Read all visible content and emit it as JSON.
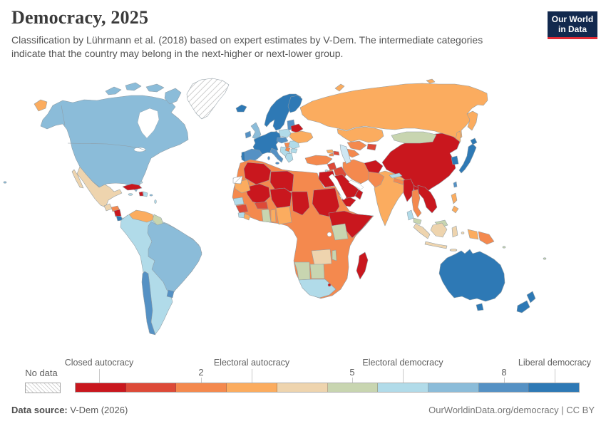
{
  "header": {
    "title": "Democracy, 2025",
    "subtitle": "Classification by Lührmann et al. (2018) based on expert estimates by V-Dem. The intermediate categories indicate that the country may belong in the next-higher or next-lower group."
  },
  "logo": {
    "line1": "Our World",
    "line2": "in Data"
  },
  "legend": {
    "no_data_label": "No data",
    "category_labels": [
      "Closed autocracy",
      "Electoral autocracy",
      "Electoral democracy",
      "Liberal democracy"
    ],
    "numeric_ticks": [
      "2",
      "5",
      "8"
    ],
    "palette": [
      "#c9171e",
      "#dd4a38",
      "#f4894e",
      "#fbac5f",
      "#eed4ae",
      "#c8d5b0",
      "#b1dbe9",
      "#8bbcd9",
      "#5591c4",
      "#2e79b5"
    ]
  },
  "footer": {
    "source_label": "Data source:",
    "source_value": "V-Dem (2026)",
    "credit": "OurWorldinData.org/democracy | CC BY"
  },
  "chart_data": {
    "type": "choropleth",
    "title": "Democracy, 2025",
    "scale": {
      "min": 0,
      "max": 9,
      "ticks": [
        2,
        5,
        8
      ],
      "category_tick_positions": [
        0,
        3,
        6,
        9
      ]
    },
    "categories": [
      "Closed autocracy",
      "Electoral autocracy",
      "Electoral democracy",
      "Liberal democracy"
    ],
    "no_data": [
      "Greenland",
      "Western Sahara"
    ],
    "countries": {
      "canada": 7,
      "united_states": 7,
      "mexico": 4,
      "guatemala": 4,
      "honduras": 2,
      "nicaragua": 0,
      "costa_rica": 9,
      "panama": 6,
      "cuba": 0,
      "haiti": 0,
      "dominican_republic": 6,
      "jamaica": 6,
      "bahamas": 6,
      "puerto_rico": 7,
      "lesser_antilles": 6,
      "colombia": 6,
      "venezuela": 3,
      "guyana": 5,
      "suriname": 5,
      "ecuador": 6,
      "peru": 6,
      "brazil": 7,
      "bolivia": 6,
      "paraguay": 6,
      "chile": 8,
      "argentina": 6,
      "uruguay": 8,
      "iceland": 9,
      "norway": 9,
      "sweden": 9,
      "finland": 9,
      "denmark": 9,
      "united_kingdom": 7,
      "ireland": 8,
      "france": 9,
      "germany": 9,
      "spain": 8,
      "portugal": 9,
      "italy": 8,
      "poland": 6,
      "czechia": 8,
      "austria": 8,
      "hungary": 2,
      "romania": 6,
      "bulgaria": 6,
      "balkans": 6,
      "serbia": 2,
      "greece": 6,
      "baltics": 8,
      "belarus": 0,
      "ukraine": 3,
      "moldova": 6,
      "russia": 3,
      "kazakhstan": 3,
      "uzbekistan": 2,
      "turkmenistan": 2,
      "kyrgyzstan_tajikistan": 1,
      "georgia": 3,
      "azerbaijan": 1,
      "armenia": 2,
      "turkey": 2,
      "syria": 1,
      "iraq": 1,
      "iran": 2,
      "saudi_arabia": 0,
      "yemen": 0,
      "oman": 0,
      "jordan": 2,
      "israel": 6,
      "egypt": 0,
      "morocco": 2,
      "algeria": 0,
      "libya": 0,
      "tunisia": 2,
      "mauritania": 3,
      "mali": 0,
      "niger": 0,
      "chad": 0,
      "sudan": 0,
      "ethiopia_horn": 0,
      "senegal": 6,
      "guinea": 1,
      "sierra_leone": 6,
      "liberia": 3,
      "ghana": 5,
      "burkina_faso": 1,
      "togo_benin": 3,
      "nigeria": 3,
      "central_africa": 2,
      "kenya": 5,
      "zambia": 4,
      "malawi": 5,
      "namibia": 5,
      "botswana": 5,
      "south_africa": 6,
      "eswatini": 0,
      "madagascar": 0,
      "afghanistan": 0,
      "pakistan": 2,
      "india": 3,
      "nepal": 2,
      "bangladesh": 0,
      "sri_lanka": 6,
      "china": 0,
      "mongolia": 5,
      "south_korea": 9,
      "japan": 9,
      "taiwan": 8,
      "myanmar": 0,
      "thailand": 2,
      "vietnam_laos_cambodia": 0,
      "malaysia": 5,
      "philippines": 3,
      "indonesia": 4,
      "west_papua": 3,
      "papua_new_guinea": 2,
      "australia": 9,
      "new_zealand": 9,
      "fiji": 5,
      "solomon_islands": 5,
      "hawaii": 7
    }
  }
}
